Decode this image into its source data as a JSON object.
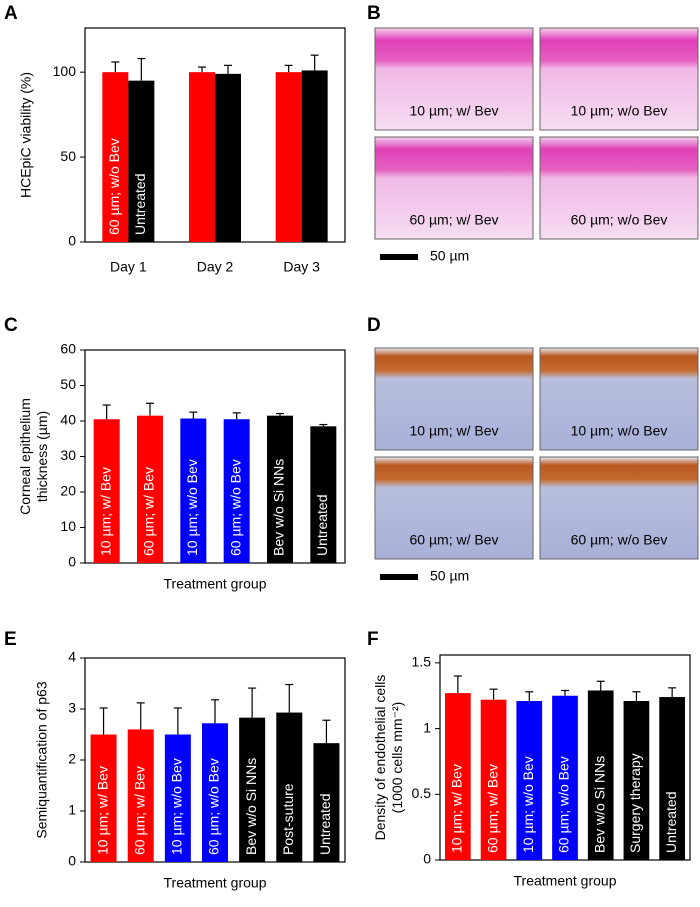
{
  "panel_labels": [
    "A",
    "B",
    "C",
    "D",
    "E",
    "F"
  ],
  "micrographs": [
    {
      "labels": [
        "10 µm; w/ Bev",
        "10 µm; w/o Bev",
        "60 µm; w/ Bev",
        "60 µm; w/o Bev"
      ],
      "scale_bar": "50 µm"
    },
    {
      "labels": [
        "10 µm; w/ Bev",
        "10 µm; w/o Bev",
        "60 µm; w/ Bev",
        "60 µm; w/o Bev"
      ],
      "scale_bar": "50 µm"
    }
  ],
  "chart_data": [
    {
      "type": "bar",
      "ylabel": "HCEpiC viability (%)",
      "categories": [
        "Day 1",
        "Day 2",
        "Day 3"
      ],
      "series": [
        {
          "name": "60 µm; w/o Bev",
          "color": "#ff0000",
          "values": [
            100,
            100,
            100
          ],
          "errors": [
            6,
            3,
            4
          ]
        },
        {
          "name": "Untreated",
          "color": "#000000",
          "values": [
            95,
            99,
            101
          ],
          "errors": [
            13,
            5,
            9
          ]
        }
      ],
      "ylim": [
        0,
        126
      ],
      "yticks": [
        0,
        50,
        100
      ]
    },
    {
      "type": "bar",
      "ylabel": [
        "Corneal epithelium",
        "thickness (µm)"
      ],
      "xlabel": "Treatment group",
      "categories": [
        "10 µm; w/ Bev",
        "60 µm; w/ Bev",
        "10 µm; w/o Bev",
        "60 µm; w/o Bev",
        "Bev w/o Si NNs",
        "Untreated"
      ],
      "values": [
        40.5,
        41.5,
        40.7,
        40.5,
        41.5,
        38.5
      ],
      "errors": [
        4,
        3.5,
        1.8,
        1.8,
        0.6,
        0.5
      ],
      "colors": [
        "#ff0000",
        "#ff0000",
        "#0000ff",
        "#0000ff",
        "#000000",
        "#000000"
      ],
      "ylim": [
        0,
        60
      ],
      "yticks": [
        0,
        10,
        20,
        30,
        40,
        50,
        60
      ]
    },
    {
      "type": "bar",
      "ylabel": [
        "Semiquantification of p63"
      ],
      "xlabel": "Treatment group",
      "categories": [
        "10 µm; w/ Bev",
        "60 µm; w/ Bev",
        "10 µm; w/o Bev",
        "60 µm; w/o Bev",
        "Bev w/o Si NNs",
        "Post-suture",
        "Untreated"
      ],
      "values": [
        2.5,
        2.6,
        2.5,
        2.72,
        2.83,
        2.93,
        2.33
      ],
      "errors": [
        0.52,
        0.52,
        0.52,
        0.46,
        0.58,
        0.55,
        0.45
      ],
      "colors": [
        "#ff0000",
        "#ff0000",
        "#0000ff",
        "#0000ff",
        "#000000",
        "#000000",
        "#000000"
      ],
      "ylim": [
        0,
        4
      ],
      "yticks": [
        0,
        1,
        2,
        3,
        4
      ]
    },
    {
      "type": "bar",
      "ylabel": [
        "Density of endothelial cells",
        "(1000 cells mm⁻²)"
      ],
      "xlabel": "Treatment group",
      "categories": [
        "10 µm; w/ Bev",
        "60 µm; w/ Bev",
        "10 µm; w/o Bev",
        "60 µm; w/o Bev",
        "Bev w/o Si NNs",
        "Surgery therapy",
        "Untreated"
      ],
      "values": [
        1.27,
        1.22,
        1.21,
        1.25,
        1.29,
        1.21,
        1.24
      ],
      "errors": [
        0.13,
        0.08,
        0.07,
        0.04,
        0.07,
        0.07,
        0.07
      ],
      "colors": [
        "#ff0000",
        "#ff0000",
        "#0000ff",
        "#0000ff",
        "#000000",
        "#000000",
        "#000000"
      ],
      "ylim": [
        0,
        1.56
      ],
      "yticks": [
        0,
        0.5,
        1,
        1.5
      ]
    }
  ]
}
